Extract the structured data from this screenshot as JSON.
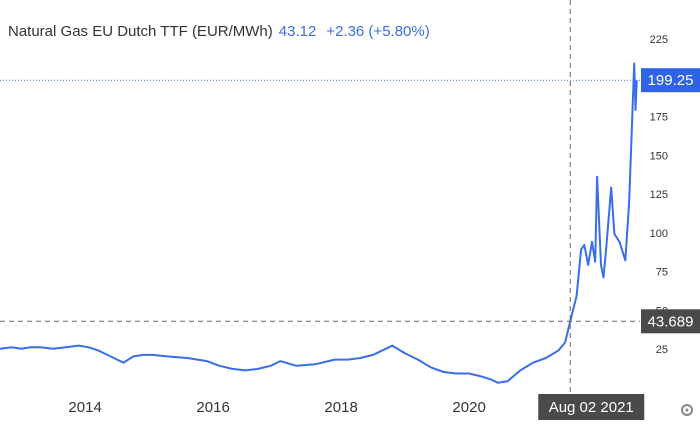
{
  "chart_data": {
    "type": "line",
    "title": "Natural Gas EU Dutch TTF (EUR/MWh)",
    "price": 43.12,
    "change": "+2.36 (+5.80%)",
    "x": [
      2012.67,
      2012.85,
      2013.0,
      2013.15,
      2013.3,
      2013.5,
      2013.7,
      2013.9,
      2014.05,
      2014.2,
      2014.35,
      2014.5,
      2014.6,
      2014.75,
      2014.9,
      2015.05,
      2015.3,
      2015.6,
      2015.9,
      2016.1,
      2016.3,
      2016.5,
      2016.7,
      2016.9,
      2017.05,
      2017.3,
      2017.6,
      2017.9,
      2018.1,
      2018.3,
      2018.5,
      2018.7,
      2018.8,
      2019.0,
      2019.2,
      2019.4,
      2019.6,
      2019.8,
      2020.0,
      2020.2,
      2020.35,
      2020.45,
      2020.6,
      2020.8,
      2021.0,
      2021.2,
      2021.4,
      2021.5,
      2021.58,
      2021.68,
      2021.75,
      2021.8,
      2021.86,
      2021.92,
      2021.97,
      2022.0,
      2022.06,
      2022.1,
      2022.14,
      2022.22,
      2022.27,
      2022.35,
      2022.44,
      2022.5,
      2022.55,
      2022.58,
      2022.6,
      2022.62
    ],
    "series": [
      {
        "name": "Natural Gas EU Dutch TTF",
        "color": "#3a6ee8",
        "values": [
          26,
          27,
          26,
          27,
          27,
          26,
          27,
          28,
          27,
          25,
          22,
          19,
          17,
          21,
          22,
          22,
          21,
          20,
          18,
          15,
          13,
          12,
          13,
          15,
          18,
          15,
          16,
          19,
          19,
          20,
          22,
          26,
          28,
          23,
          19,
          14,
          11,
          10,
          10,
          8,
          6,
          4,
          5,
          12,
          17,
          20,
          25,
          30,
          43.689,
          60,
          90,
          93,
          80,
          95,
          82,
          137,
          80,
          72,
          90,
          130,
          100,
          95,
          83,
          120,
          176,
          210,
          180,
          199.25
        ]
      }
    ],
    "xlim": [
      2012.67,
      2022.67
    ],
    "xticks": [
      2014,
      2016,
      2018,
      2020
    ],
    "ylim": [
      0,
      251
    ],
    "yticks": [
      25,
      50,
      75,
      100,
      125,
      150,
      175,
      225
    ],
    "grid": false,
    "last_value": 199.25,
    "crosshair": {
      "x": 2021.58,
      "x_label": "Aug 02 2021",
      "y": 43.689
    }
  }
}
